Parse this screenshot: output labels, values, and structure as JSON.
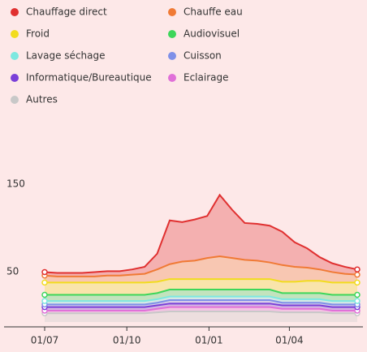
{
  "chart_data": {
    "type": "stacked_area",
    "x": [
      0,
      14,
      28,
      42,
      56,
      70,
      84,
      98,
      112,
      126,
      140,
      154,
      168,
      182,
      196,
      210,
      224,
      238,
      252,
      266,
      280,
      294,
      308,
      322,
      336,
      350
    ],
    "xlim": [
      0,
      350
    ],
    "xticks": [
      {
        "value": 0,
        "label": "01/07"
      },
      {
        "value": 92,
        "label": "01/10"
      },
      {
        "value": 184,
        "label": "01/01"
      },
      {
        "value": 274,
        "label": "01/04"
      }
    ],
    "ylim": [
      0,
      200
    ],
    "yticks": [
      50,
      150
    ],
    "series": [
      {
        "name": "Chauffage direct",
        "color": "#e03030",
        "values": [
          4,
          4,
          4,
          4,
          5,
          5,
          5,
          6,
          8,
          18,
          50,
          45,
          47,
          48,
          70,
          55,
          42,
          42,
          42,
          38,
          28,
          22,
          14,
          10,
          8,
          6
        ]
      },
      {
        "name": "Chauffe eau",
        "color": "#f07a35",
        "values": [
          8,
          7,
          7,
          7,
          7,
          8,
          8,
          9,
          10,
          14,
          17,
          20,
          21,
          24,
          26,
          24,
          22,
          21,
          19,
          19,
          17,
          15,
          13,
          12,
          10,
          9
        ]
      },
      {
        "name": "Froid",
        "color": "#f2dc1e",
        "values": [
          14,
          14,
          14,
          14,
          14,
          14,
          14,
          14,
          14,
          13,
          12,
          12,
          12,
          12,
          12,
          12,
          12,
          12,
          12,
          13,
          13,
          14,
          14,
          14,
          14,
          14
        ]
      },
      {
        "name": "Audiovisuel",
        "color": "#3dd65a",
        "values": [
          7,
          7,
          7,
          7,
          7,
          7,
          7,
          7,
          7,
          7,
          8,
          8,
          8,
          8,
          8,
          8,
          8,
          8,
          8,
          7,
          7,
          7,
          7,
          7,
          7,
          7
        ]
      },
      {
        "name": "Lavage séchage",
        "color": "#7de8e0",
        "values": [
          4,
          4,
          4,
          4,
          4,
          4,
          4,
          4,
          4,
          4,
          4,
          4,
          4,
          4,
          4,
          4,
          4,
          4,
          4,
          4,
          4,
          4,
          4,
          4,
          4,
          4
        ]
      },
      {
        "name": "Cuisson",
        "color": "#7f90e8",
        "values": [
          3,
          3,
          3,
          3,
          3,
          3,
          3,
          3,
          3,
          3,
          4,
          4,
          4,
          4,
          4,
          4,
          4,
          4,
          4,
          3,
          3,
          3,
          3,
          3,
          3,
          3
        ]
      },
      {
        "name": "Informatique/Bureautique",
        "color": "#7a3fd8",
        "values": [
          4,
          4,
          4,
          4,
          4,
          4,
          4,
          4,
          4,
          4,
          4,
          4,
          4,
          4,
          4,
          4,
          4,
          4,
          4,
          4,
          4,
          4,
          4,
          4,
          4,
          4
        ]
      },
      {
        "name": "Eclairage",
        "color": "#e070d8",
        "values": [
          3,
          3,
          3,
          3,
          3,
          3,
          3,
          3,
          3,
          4,
          5,
          5,
          5,
          5,
          5,
          5,
          5,
          5,
          5,
          4,
          4,
          4,
          4,
          3,
          3,
          3
        ]
      },
      {
        "name": "Autres",
        "color": "#c8c8c8",
        "values": [
          10,
          10,
          10,
          10,
          10,
          10,
          10,
          10,
          10,
          11,
          12,
          12,
          12,
          12,
          12,
          12,
          12,
          12,
          12,
          11,
          11,
          11,
          11,
          10,
          10,
          10
        ]
      }
    ]
  }
}
